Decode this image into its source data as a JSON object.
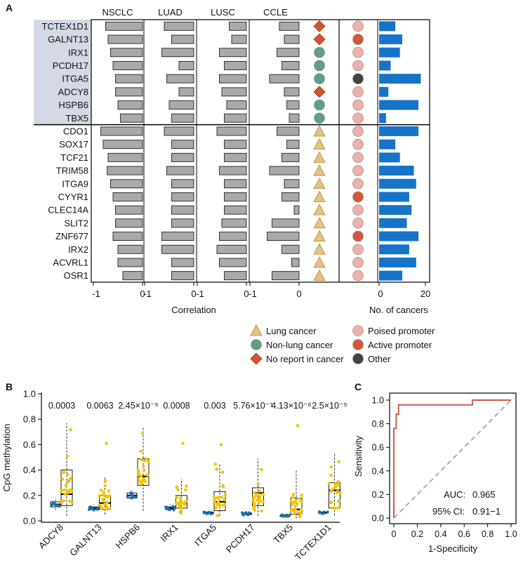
{
  "chart_data": [
    {
      "panel": "A",
      "type": "bar",
      "title": "",
      "genes": [
        "TCTEX1D1",
        "GALNT13",
        "IRX1",
        "PCDH17",
        "ITGA5",
        "ADCY8",
        "HSPB6",
        "TBX5",
        "CDO1",
        "SOX17",
        "TCF21",
        "TRIM58",
        "ITGA9",
        "CYYR1",
        "CLEC14A",
        "SLIT2",
        "ZNF677",
        "IRX2",
        "ACVRL1",
        "OSR1"
      ],
      "highlight_count": 8,
      "highlight_color": "#d3d9e5",
      "correlation_columns": [
        {
          "name": "NSCLC",
          "values": [
            -0.75,
            -0.7,
            -0.65,
            -0.6,
            -0.55,
            -0.55,
            -0.5,
            -0.45,
            -0.85,
            -0.8,
            -0.7,
            -0.72,
            -0.65,
            -0.6,
            -0.55,
            -0.55,
            -0.6,
            -0.5,
            -0.5,
            -0.4
          ]
        },
        {
          "name": "LUAD",
          "values": [
            -0.6,
            -0.45,
            -0.65,
            -0.3,
            -0.55,
            -0.3,
            -0.5,
            -0.45,
            -0.6,
            -0.45,
            -0.45,
            -0.55,
            -0.45,
            -0.45,
            -0.45,
            -0.45,
            -0.65,
            -0.65,
            -0.45,
            -0.45
          ]
        },
        {
          "name": "LUSC",
          "values": [
            -0.35,
            -0.3,
            -0.55,
            -0.45,
            -0.55,
            -0.5,
            -0.4,
            -0.45,
            -0.6,
            -0.45,
            -0.45,
            -0.55,
            -0.45,
            -0.45,
            -0.45,
            -0.5,
            -0.55,
            -0.6,
            -0.55,
            -0.45
          ]
        },
        {
          "name": "CCLE",
          "values": [
            -0.4,
            -0.3,
            -0.45,
            -0.35,
            -0.6,
            -0.3,
            -0.25,
            -0.2,
            -0.45,
            -0.25,
            -0.35,
            -0.6,
            -0.3,
            -0.35,
            -0.1,
            -0.55,
            -0.65,
            -0.35,
            -0.15,
            -0.55
          ]
        }
      ],
      "xticks": [
        "-1",
        "0"
      ],
      "xlabel": "Correlation",
      "cancer_report": [
        "no_report",
        "no_report",
        "non_lung",
        "non_lung",
        "non_lung",
        "no_report",
        "non_lung",
        "non_lung",
        "lung",
        "lung",
        "lung",
        "lung",
        "lung",
        "lung",
        "lung",
        "lung",
        "lung",
        "lung",
        "lung",
        "lung"
      ],
      "promoter_state": [
        "poised",
        "active",
        "poised",
        "poised",
        "other",
        "poised",
        "poised",
        "poised",
        "poised",
        "poised",
        "poised",
        "poised",
        "poised",
        "active",
        "poised",
        "poised",
        "active",
        "poised",
        "poised",
        "poised"
      ],
      "no_of_cancers": [
        7,
        10,
        9,
        5,
        18,
        4,
        17,
        3,
        17,
        7,
        9,
        15,
        16,
        13,
        14,
        12,
        17,
        13,
        16,
        10
      ],
      "nc_max": 20,
      "nc_xticks": [
        "0",
        "20"
      ],
      "nc_xlabel": "No. of cancers",
      "legend": [
        {
          "key": "lung",
          "label": "Lung cancer",
          "shape": "triangle",
          "color": "#e7c17f"
        },
        {
          "key": "non_lung",
          "label": "Non-lung cancer",
          "shape": "circle",
          "color": "#5f9f86"
        },
        {
          "key": "no_report",
          "label": "No report in cancer",
          "shape": "diamond",
          "color": "#d3542e"
        },
        {
          "key": "poised",
          "label": "Poised promoter",
          "shape": "circle",
          "color": "#eeb0a8"
        },
        {
          "key": "active",
          "label": "Active promoter",
          "shape": "circle",
          "color": "#d4573b"
        },
        {
          "key": "other",
          "label": "Other",
          "shape": "circle",
          "color": "#444444"
        }
      ],
      "bar_color": "#a9a9a9",
      "nc_bar_color": "#1674c8"
    },
    {
      "panel": "B",
      "type": "box",
      "ylabel": "CpG methylation",
      "ylim": [
        0,
        1
      ],
      "yticks": [
        "0.0",
        "0.2",
        "0.4",
        "0.6",
        "0.8",
        "1.0"
      ],
      "genes": [
        "ADCY8",
        "GALNT13",
        "HSPB6",
        "IRX1",
        "ITGA5",
        "PCDH17",
        "TBX5",
        "TCTEX1D1"
      ],
      "pvalues": [
        "0.0003",
        "0.0063",
        "2.45×10⁻⁵",
        "0.0008",
        "0.003",
        "5.76×10⁻⁷",
        "4.13×10⁻⁶",
        "2.5×10⁻⁵"
      ],
      "normal_box": [
        {
          "min": 0.09,
          "q1": 0.11,
          "med": 0.13,
          "q3": 0.15,
          "max": 0.18
        },
        {
          "min": 0.08,
          "q1": 0.09,
          "med": 0.1,
          "q3": 0.11,
          "max": 0.13
        },
        {
          "min": 0.17,
          "q1": 0.18,
          "med": 0.2,
          "q3": 0.22,
          "max": 0.24
        },
        {
          "min": 0.08,
          "q1": 0.09,
          "med": 0.1,
          "q3": 0.11,
          "max": 0.13
        },
        {
          "min": 0.05,
          "q1": 0.06,
          "med": 0.065,
          "q3": 0.07,
          "max": 0.08
        },
        {
          "min": 0.04,
          "q1": 0.05,
          "med": 0.055,
          "q3": 0.06,
          "max": 0.07
        },
        {
          "min": 0.03,
          "q1": 0.035,
          "med": 0.04,
          "q3": 0.045,
          "max": 0.05
        },
        {
          "min": 0.05,
          "q1": 0.06,
          "med": 0.065,
          "q3": 0.07,
          "max": 0.08
        }
      ],
      "tumor_box": [
        {
          "min": 0.04,
          "q1": 0.12,
          "med": 0.21,
          "q3": 0.4,
          "max": 0.77
        },
        {
          "min": 0.05,
          "q1": 0.09,
          "med": 0.14,
          "q3": 0.2,
          "max": 0.34
        },
        {
          "min": 0.08,
          "q1": 0.28,
          "med": 0.35,
          "q3": 0.49,
          "max": 0.74
        },
        {
          "min": 0.05,
          "q1": 0.1,
          "med": 0.14,
          "q3": 0.2,
          "max": 0.33
        },
        {
          "min": 0.04,
          "q1": 0.08,
          "med": 0.15,
          "q3": 0.23,
          "max": 0.45
        },
        {
          "min": 0.04,
          "q1": 0.12,
          "med": 0.22,
          "q3": 0.26,
          "max": 0.49
        },
        {
          "min": 0.02,
          "q1": 0.05,
          "med": 0.09,
          "q3": 0.18,
          "max": 0.4
        },
        {
          "min": 0.04,
          "q1": 0.1,
          "med": 0.24,
          "q3": 0.3,
          "max": 0.54
        }
      ],
      "tumor_outliers": [
        [],
        [
          0.61
        ],
        [],
        [
          0.61
        ],
        [
          0.6
        ],
        [],
        [
          0.75
        ],
        []
      ],
      "normal_color": "#1f6fb5",
      "tumor_color": "#f5c400"
    },
    {
      "panel": "C",
      "type": "line",
      "xlabel": "1-Specificity",
      "ylabel": "Sensitivity",
      "xlim": [
        0,
        1
      ],
      "ylim": [
        0,
        1
      ],
      "xticks": [
        "0",
        "0.2",
        "0.4",
        "0.6",
        "0.8",
        "1.0"
      ],
      "yticks": [
        "0.0",
        "0.2",
        "0.4",
        "0.6",
        "0.8",
        "1.0"
      ],
      "roc_x": [
        0,
        0,
        0,
        0.02,
        0.02,
        0.04,
        0.04,
        0.67,
        0.67,
        1.0
      ],
      "roc_y": [
        0,
        0.5,
        0.76,
        0.76,
        0.88,
        0.88,
        0.96,
        0.96,
        1.0,
        1.0
      ],
      "auc_label": "AUC:",
      "auc_value": "0.965",
      "ci_label": "95% CI:",
      "ci_value": "0.91−1",
      "line_color": "#d05a4a"
    }
  ]
}
